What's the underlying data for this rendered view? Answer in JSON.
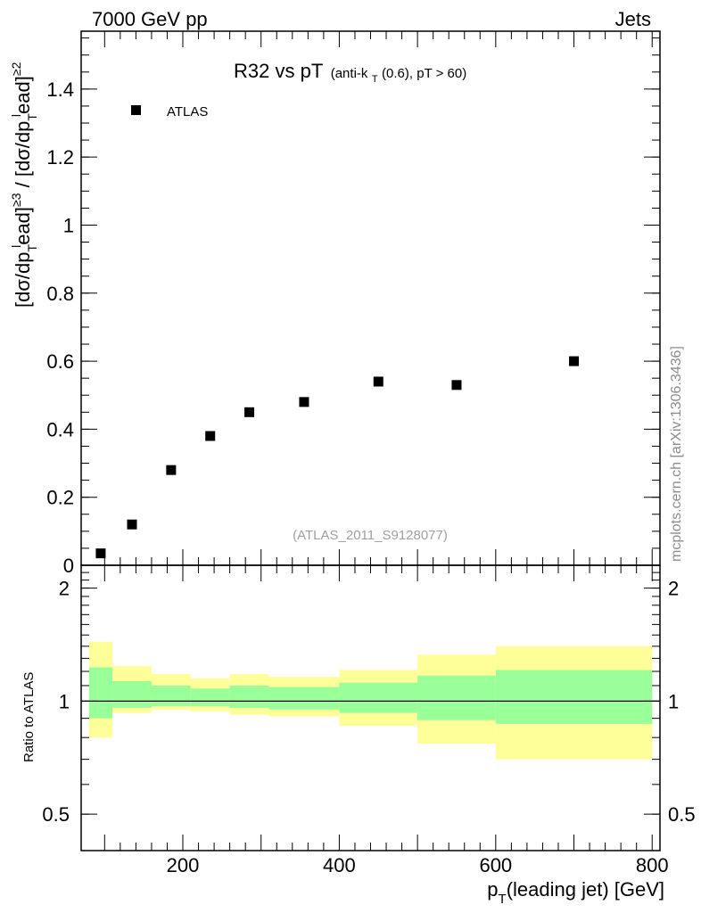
{
  "header": {
    "left": "7000 GeV pp",
    "right": "Jets"
  },
  "side_label": "mcplots.cern.ch [arXiv:1306.3436]",
  "analysis_label": "(ATLAS_2011_S9128077)",
  "title": {
    "main": "R32 vs pT",
    "detail_prefix": "(anti-k",
    "detail_sub": "T",
    "detail_suffix": "(0.6), pT > 60)"
  },
  "ylabel": {
    "p1": "[dσ/dp",
    "s1": "T",
    "sup1": "l",
    "p2": "ead]",
    "sup2": "≥3",
    "p3": " / [dσ/dp",
    "s2": "T",
    "sup3": "l",
    "p4": "ead]",
    "sup4": "≥2"
  },
  "xlabel": {
    "p1": "p",
    "s1": "T",
    "p2": "(leading jet) [GeV]"
  },
  "ratio_ylabel": "Ratio to ATLAS",
  "legend": {
    "label": "ATLAS",
    "position": "top-left"
  },
  "colors": {
    "band_inner": "#99ff99",
    "band_outer": "#ffff99",
    "marker": "#000000"
  },
  "chart_data": [
    {
      "type": "scatter",
      "xlim": [
        70,
        810
      ],
      "ylim": [
        0,
        1.57
      ],
      "y_ticks": [
        0,
        0.2,
        0.4,
        0.6,
        0.8,
        1,
        1.2,
        1.4
      ],
      "y_tick_labels": [
        "0",
        "0.2",
        "0.4",
        "0.6",
        "0.8",
        "1",
        "1.2",
        "1.4"
      ],
      "series": [
        {
          "name": "ATLAS",
          "x": [
            95,
            135,
            185,
            235,
            285,
            355,
            450,
            550,
            700
          ],
          "y": [
            0.035,
            0.12,
            0.28,
            0.38,
            0.45,
            0.48,
            0.54,
            0.53,
            0.6
          ]
        }
      ]
    },
    {
      "type": "area",
      "xlim": [
        70,
        810
      ],
      "ylim": [
        0.4,
        2.3
      ],
      "log_scale": true,
      "y_ticks": [
        0.5,
        1,
        2
      ],
      "y_tick_labels": [
        "0.5",
        "1",
        "2"
      ],
      "x_ticks": [
        200,
        400,
        600,
        800
      ],
      "x_tick_labels": [
        "200",
        "400",
        "600",
        "800"
      ],
      "bins": [
        {
          "lo": 80,
          "hi": 110,
          "inner": [
            0.9,
            1.23
          ],
          "outer": [
            0.8,
            1.44
          ]
        },
        {
          "lo": 110,
          "hi": 160,
          "inner": [
            0.96,
            1.13
          ],
          "outer": [
            0.93,
            1.24
          ]
        },
        {
          "lo": 160,
          "hi": 210,
          "inner": [
            0.97,
            1.1
          ],
          "outer": [
            0.95,
            1.18
          ]
        },
        {
          "lo": 210,
          "hi": 260,
          "inner": [
            0.97,
            1.08
          ],
          "outer": [
            0.94,
            1.15
          ]
        },
        {
          "lo": 260,
          "hi": 310,
          "inner": [
            0.96,
            1.1
          ],
          "outer": [
            0.92,
            1.18
          ]
        },
        {
          "lo": 310,
          "hi": 400,
          "inner": [
            0.95,
            1.09
          ],
          "outer": [
            0.91,
            1.16
          ]
        },
        {
          "lo": 400,
          "hi": 500,
          "inner": [
            0.93,
            1.12
          ],
          "outer": [
            0.86,
            1.21
          ]
        },
        {
          "lo": 500,
          "hi": 600,
          "inner": [
            0.89,
            1.17
          ],
          "outer": [
            0.77,
            1.33
          ]
        },
        {
          "lo": 600,
          "hi": 800,
          "inner": [
            0.87,
            1.21
          ],
          "outer": [
            0.7,
            1.4
          ]
        }
      ],
      "reference_line": 1
    }
  ]
}
